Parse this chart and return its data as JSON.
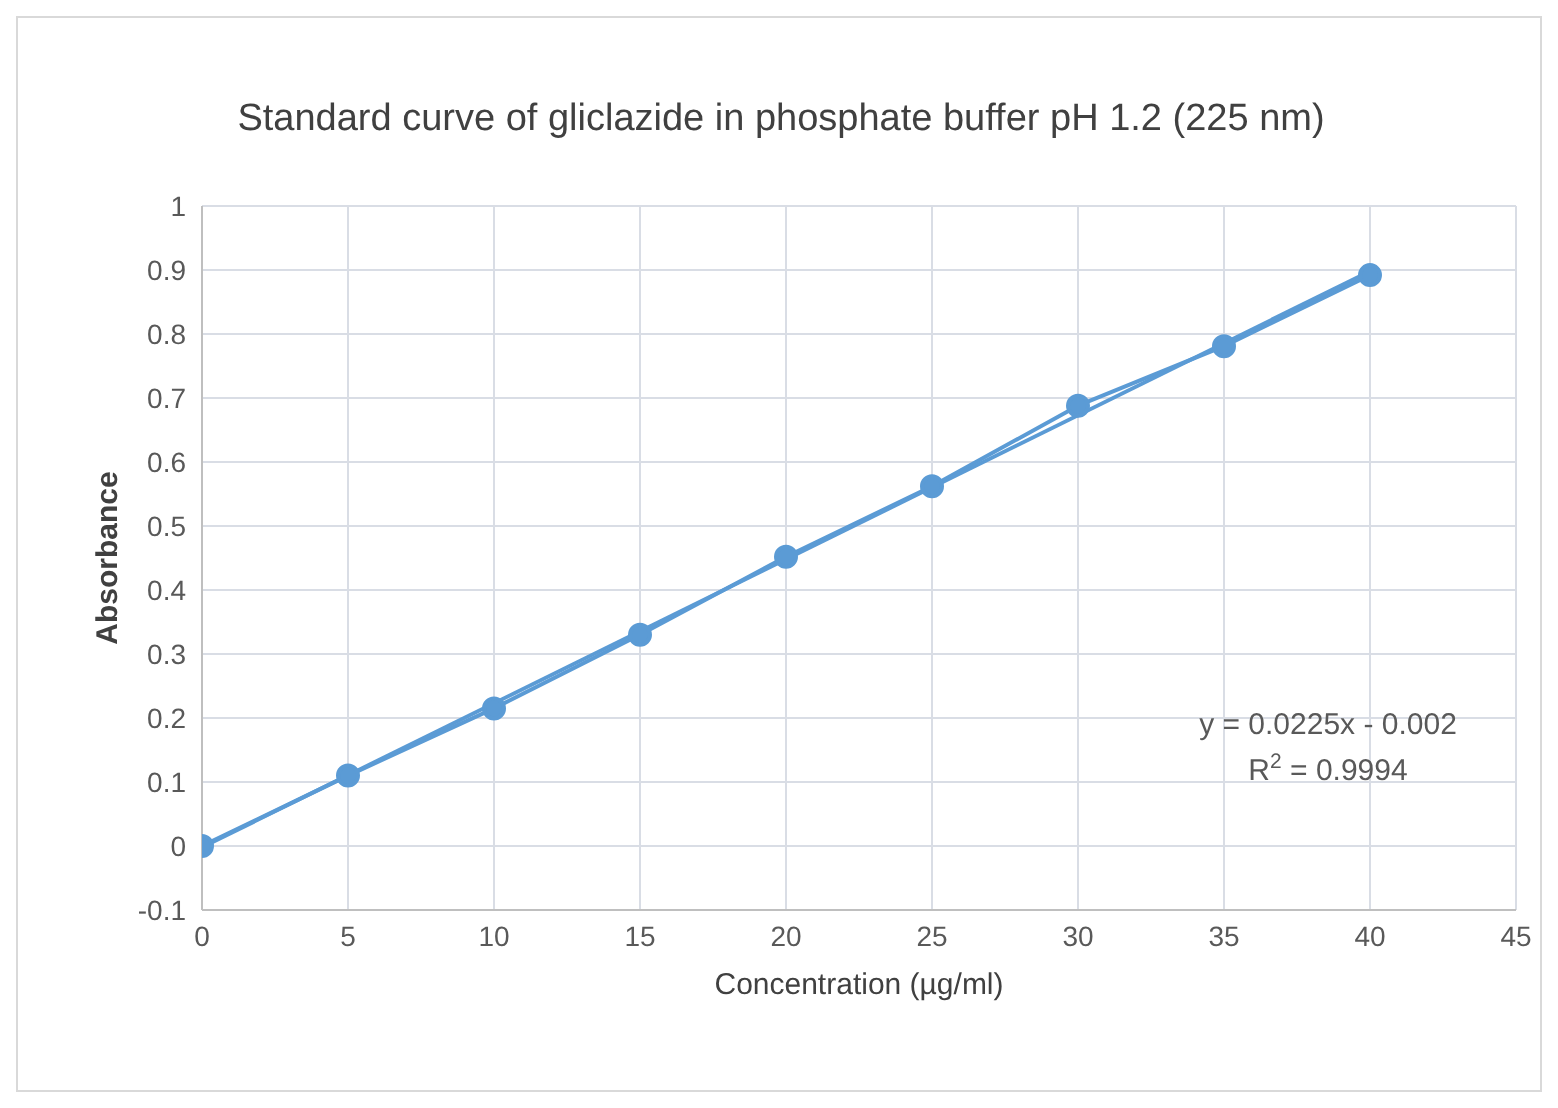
{
  "chart_data": {
    "type": "line",
    "title": "Standard curve of gliclazide in phosphate buffer pH 1.2 (225 nm)",
    "xlabel": "Concentration (µg/ml)",
    "ylabel": "Absorbance",
    "x": [
      0,
      5,
      10,
      15,
      20,
      25,
      30,
      35,
      40
    ],
    "series": [
      {
        "color": "#5b9bd5",
        "values": [
          0,
          0.11,
          0.215,
          0.33,
          0.452,
          0.562,
          0.688,
          0.781,
          0.892
        ],
        "marker": "circle"
      },
      {
        "color": "#5b9bd5",
        "x": [
          0,
          40
        ],
        "values": [
          -0.002,
          0.898
        ],
        "marker": "none"
      }
    ],
    "xlim": [
      0,
      45
    ],
    "xticks": [
      0,
      5,
      10,
      15,
      20,
      25,
      30,
      35,
      40,
      45
    ],
    "ylim": [
      -0.1,
      1
    ],
    "yticks": [
      -0.1,
      0,
      0.1,
      0.2,
      0.3,
      0.4,
      0.5,
      0.6,
      0.7,
      0.8,
      0.9,
      1
    ],
    "grid": true,
    "line_style": "solid",
    "annotations": [
      "y = 0.0225x - 0.002",
      "R$^{2}$ = 0.9994"
    ]
  }
}
